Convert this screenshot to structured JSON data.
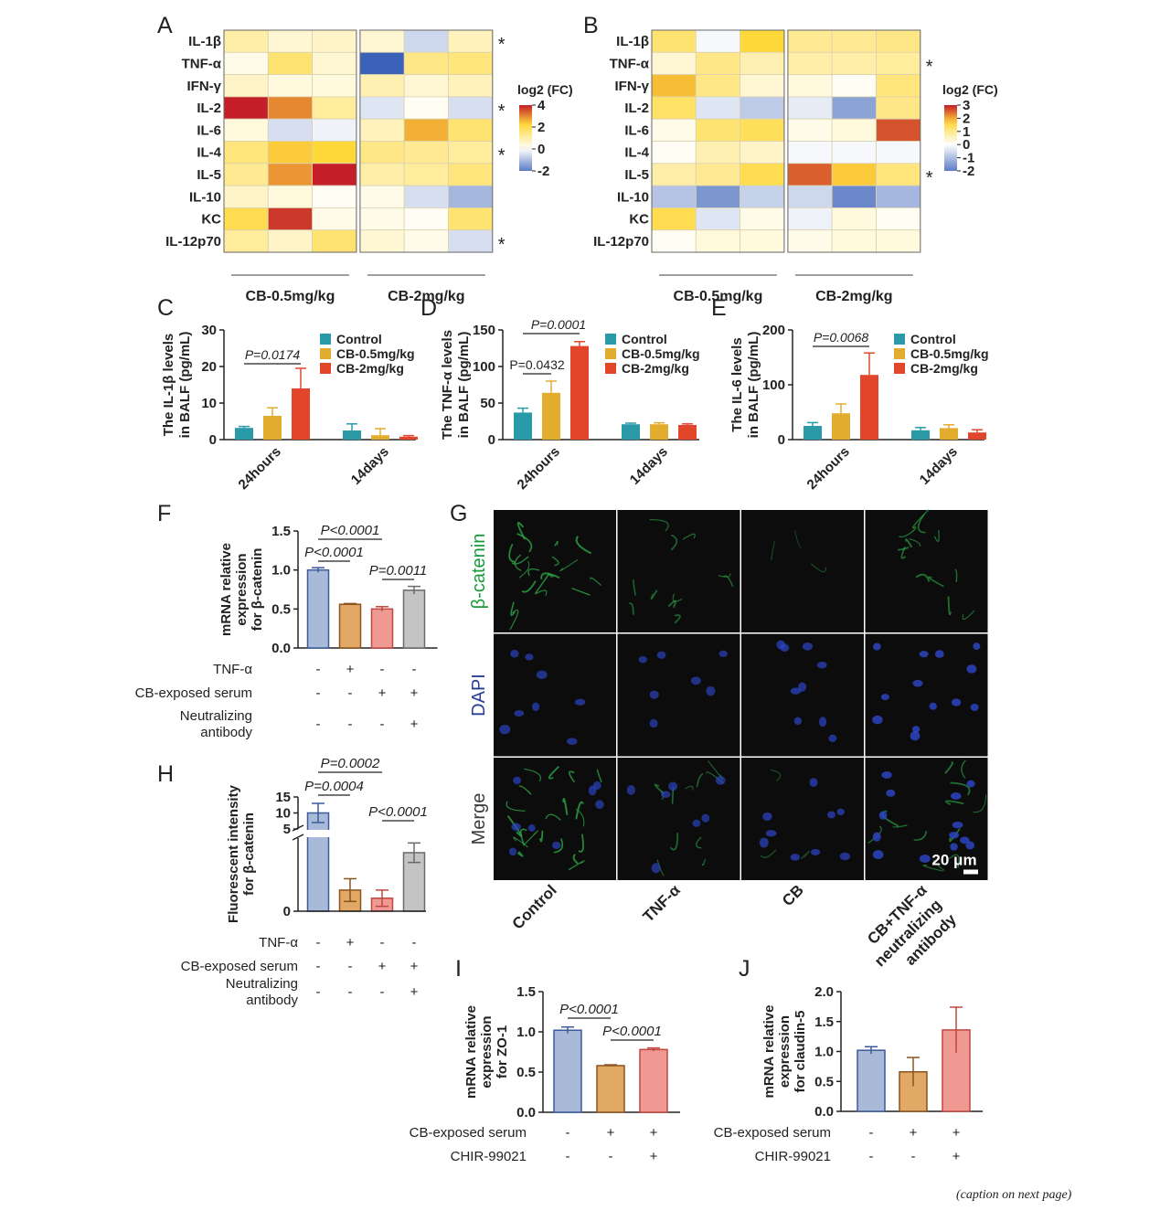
{
  "caption_note": "(caption on next page)",
  "heatmap_genes": [
    "IL-1β",
    "TNF-α",
    "IFN-γ",
    "IL-2",
    "IL-6",
    "IL-4",
    "IL-5",
    "IL-10",
    "KC",
    "IL-12p70"
  ],
  "chart_data": [
    {
      "panel": "A",
      "type": "heatmap",
      "groups": [
        "CB-0.5mg/kg",
        "CB-2mg/kg"
      ],
      "rows": [
        "IL-1β",
        "TNF-α",
        "IFN-γ",
        "IL-2",
        "IL-6",
        "IL-4",
        "IL-5",
        "IL-10",
        "KC",
        "IL-12p70"
      ],
      "values": [
        [
          0.8,
          0.4,
          0.5,
          0.4,
          -0.6,
          0.6
        ],
        [
          0.2,
          1.3,
          0.4,
          -2.4,
          1.1,
          1.2
        ],
        [
          0.5,
          0.3,
          0.3,
          0.7,
          0.4,
          0.6
        ],
        [
          3.2,
          2.4,
          0.9,
          -0.4,
          0.1,
          -0.5
        ],
        [
          0.3,
          -0.5,
          -0.2,
          0.6,
          2.1,
          1.3
        ],
        [
          1.2,
          1.9,
          1.8,
          1.1,
          1.0,
          0.9
        ],
        [
          1.0,
          2.3,
          3.4,
          0.8,
          0.9,
          1.2
        ],
        [
          0.5,
          0.3,
          0.1,
          0.2,
          -0.5,
          -1.1
        ],
        [
          1.6,
          3.0,
          0.2,
          0.2,
          0.1,
          1.3
        ],
        [
          0.9,
          0.5,
          1.3,
          0.4,
          0.2,
          -0.5
        ]
      ],
      "significant_rows": [
        "IL-1β",
        "IL-2",
        "IL-4",
        "IL-12p70"
      ],
      "legend": {
        "title": "log2 (FC)",
        "ticks": [
          "4",
          "2",
          "0",
          "-2"
        ],
        "range": [
          -2,
          4
        ]
      }
    },
    {
      "panel": "B",
      "type": "heatmap",
      "groups": [
        "CB-0.5mg/kg",
        "CB-2mg/kg"
      ],
      "rows": [
        "IL-1β",
        "TNF-α",
        "IFN-γ",
        "IL-2",
        "IL-6",
        "IL-4",
        "IL-5",
        "IL-10",
        "KC",
        "IL-12p70"
      ],
      "values": [
        [
          1.3,
          -0.1,
          1.8,
          1.0,
          1.0,
          1.1
        ],
        [
          0.4,
          1.1,
          0.7,
          0.8,
          0.8,
          0.9
        ],
        [
          2.0,
          1.1,
          0.4,
          0.3,
          0.1,
          1.2
        ],
        [
          1.4,
          -0.4,
          -0.8,
          -0.3,
          -1.4,
          1.1
        ],
        [
          0.2,
          1.3,
          1.5,
          0.2,
          0.3,
          2.8
        ],
        [
          0.1,
          0.7,
          0.5,
          -0.1,
          -0.1,
          -0.1
        ],
        [
          0.8,
          1.0,
          1.6,
          2.7,
          1.9,
          1.2
        ],
        [
          -0.9,
          -1.6,
          -0.7,
          -0.6,
          -1.8,
          -1.1
        ],
        [
          1.6,
          -0.4,
          0.2,
          -0.2,
          0.3,
          0.1
        ],
        [
          0.1,
          0.3,
          0.3,
          0.2,
          0.3,
          0.3
        ]
      ],
      "significant_rows": [
        "TNF-α",
        "IL-5"
      ],
      "legend": {
        "title": "log2 (FC)",
        "ticks": [
          "3",
          "2",
          "1",
          "0",
          "-1",
          "-2"
        ],
        "range": [
          -2,
          3
        ]
      }
    },
    {
      "panel": "C",
      "type": "bar",
      "ylabel": "The IL-1β levels in BALF (pg/mL)",
      "ylabel_lines": [
        "The IL-1β levels",
        "in BALF (pg/mL)"
      ],
      "ylim": [
        0,
        30
      ],
      "yticks": [
        "0",
        "10",
        "20",
        "30"
      ],
      "categories": [
        "24hours",
        "14days"
      ],
      "series": [
        {
          "name": "Control",
          "values": [
            3.2,
            2.5
          ],
          "errors": [
            0.4,
            1.8
          ]
        },
        {
          "name": "CB-0.5mg/kg",
          "values": [
            6.5,
            1.2
          ],
          "errors": [
            2.2,
            1.8
          ]
        },
        {
          "name": "CB-2mg/kg",
          "values": [
            14,
            0.8
          ],
          "errors": [
            5.5,
            0.3
          ]
        }
      ],
      "annotations": [
        {
          "text": "P=0.0174"
        }
      ]
    },
    {
      "panel": "D",
      "type": "bar",
      "ylabel": "The TNF-α levels in BALF (pg/mL)",
      "ylabel_lines": [
        "The TNF-α levels",
        "in BALF (pg/mL)"
      ],
      "ylim": [
        0,
        150
      ],
      "yticks": [
        "0",
        "50",
        "100",
        "150"
      ],
      "categories": [
        "24hours",
        "14days"
      ],
      "series": [
        {
          "name": "Control",
          "values": [
            37,
            21
          ],
          "errors": [
            6,
            1.5
          ]
        },
        {
          "name": "CB-0.5mg/kg",
          "values": [
            64,
            21
          ],
          "errors": [
            16,
            2
          ]
        },
        {
          "name": "CB-2mg/kg",
          "values": [
            128,
            20
          ],
          "errors": [
            6,
            1.5
          ]
        }
      ],
      "annotations": [
        {
          "text": "P=0.0432"
        },
        {
          "text": "P=0.0001"
        }
      ]
    },
    {
      "panel": "E",
      "type": "bar",
      "ylabel": "The IL-6 levels in BALF (pg/mL)",
      "ylabel_lines": [
        "The IL-6 levels",
        "in BALF (pg/mL)"
      ],
      "ylim": [
        0,
        200
      ],
      "yticks": [
        "0",
        "100",
        "200"
      ],
      "categories": [
        "24hours",
        "14days"
      ],
      "series": [
        {
          "name": "Control",
          "values": [
            25,
            17
          ],
          "errors": [
            6,
            5
          ]
        },
        {
          "name": "CB-0.5mg/kg",
          "values": [
            48,
            21
          ],
          "errors": [
            17,
            6
          ]
        },
        {
          "name": "CB-2mg/kg",
          "values": [
            118,
            13
          ],
          "errors": [
            40,
            5
          ]
        }
      ],
      "annotations": [
        {
          "text": "P=0.0068"
        }
      ]
    },
    {
      "panel": "F",
      "type": "bar",
      "ylabel": "mRNA relative expression for β-catenin",
      "ylabel_lines": [
        "mRNA relative",
        "expression",
        "for β-catenin"
      ],
      "ylim": [
        0,
        1.5
      ],
      "yticks": [
        "0.0",
        "0.5",
        "1.0",
        "1.5"
      ],
      "values": [
        1.0,
        0.56,
        0.5,
        0.74
      ],
      "errors": [
        0.03,
        0.01,
        0.03,
        0.05
      ],
      "conditions": [
        {
          "label": "TNF-α",
          "signs": [
            "-",
            "+",
            "-",
            "-"
          ]
        },
        {
          "label": "CB-exposed serum",
          "signs": [
            "-",
            "-",
            "+",
            "+"
          ]
        },
        {
          "label": "Neutralizing antibody",
          "label_lines": [
            "Neutralizing",
            "antibody"
          ],
          "signs": [
            "-",
            "-",
            "-",
            "+"
          ]
        }
      ],
      "annotations": [
        {
          "text": "P<0.0001"
        },
        {
          "text": "P<0.0001"
        },
        {
          "text": "P=0.0011"
        }
      ]
    },
    {
      "panel": "H",
      "type": "bar",
      "ylabel": "Fluorescent intensity for β-catenin",
      "ylabel_lines": [
        "Fluorescent intensity",
        "for β-catenin"
      ],
      "yticks": [
        "0",
        "5",
        "10",
        "15"
      ],
      "axis_break": true,
      "values": [
        10,
        1.3,
        0.8,
        3.6
      ],
      "errors": [
        3,
        0.7,
        0.5,
        0.6
      ],
      "conditions": [
        {
          "label": "TNF-α",
          "signs": [
            "-",
            "+",
            "-",
            "-"
          ]
        },
        {
          "label": "CB-exposed serum",
          "signs": [
            "-",
            "-",
            "+",
            "+"
          ]
        },
        {
          "label": "Neutralizing antibody",
          "label_lines": [
            "Neutralizing",
            "antibody"
          ],
          "signs": [
            "-",
            "-",
            "-",
            "+"
          ]
        }
      ],
      "annotations": [
        {
          "text": "P=0.0004"
        },
        {
          "text": "P=0.0002"
        },
        {
          "text": "P<0.0001"
        }
      ]
    },
    {
      "panel": "I",
      "type": "bar",
      "ylabel": "mRNA relative expression for ZO-1",
      "ylabel_lines": [
        "mRNA relative",
        "expression",
        "for ZO-1"
      ],
      "ylim": [
        0,
        1.5
      ],
      "yticks": [
        "0.0",
        "0.5",
        "1.0",
        "1.5"
      ],
      "values": [
        1.02,
        0.58,
        0.78
      ],
      "errors": [
        0.04,
        0.01,
        0.02
      ],
      "conditions": [
        {
          "label": "CB-exposed serum",
          "signs": [
            "-",
            "+",
            "+"
          ]
        },
        {
          "label": "CHIR-99021",
          "signs": [
            "-",
            "-",
            "+"
          ]
        }
      ],
      "annotations": [
        {
          "text": "P<0.0001"
        },
        {
          "text": "P<0.0001"
        }
      ]
    },
    {
      "panel": "J",
      "type": "bar",
      "ylabel": "mRNA relative expression for claudin-5",
      "ylabel_lines": [
        "mRNA relative",
        "expression",
        "for claudin-5"
      ],
      "ylim": [
        0,
        2.0
      ],
      "yticks": [
        "0.0",
        "0.5",
        "1.0",
        "1.5",
        "2.0"
      ],
      "values": [
        1.02,
        0.66,
        1.36
      ],
      "errors": [
        0.06,
        0.24,
        0.38
      ],
      "conditions": [
        {
          "label": "CB-exposed serum",
          "signs": [
            "-",
            "+",
            "+"
          ]
        },
        {
          "label": "CHIR-99021",
          "signs": [
            "-",
            "-",
            "+"
          ]
        }
      ]
    },
    {
      "panel": "G",
      "type": "image-grid",
      "row_labels": [
        "β-catenin",
        "DAPI",
        "Merge"
      ],
      "column_labels": [
        "Control",
        "TNF-α",
        "CB",
        "CB+TNF-α neutralizing antibody"
      ],
      "column_label_lines": [
        [
          "Control"
        ],
        [
          "TNF-α"
        ],
        [
          "CB"
        ],
        [
          "CB+TNF-α",
          "neutralizing",
          "antibody"
        ]
      ],
      "scale_bar": "20 μm",
      "intensity": {
        "beta_catenin": [
          0.9,
          0.5,
          0.15,
          0.6
        ],
        "dapi": [
          0.5,
          0.45,
          0.55,
          0.8
        ]
      }
    }
  ],
  "colors": {
    "control": "#2a9aa8",
    "cb05": "#e2ad2f",
    "cb2": "#e2462a",
    "bar_blue": "#a9b9d8",
    "bar_blue_edge": "#3a5a9a",
    "bar_orange": "#e2a866",
    "bar_orange_edge": "#8a5420",
    "bar_pink": "#ee9a92",
    "bar_pink_edge": "#c0463f",
    "bar_grey": "#c4c4c4",
    "bar_grey_edge": "#6a6a6a",
    "heat_neg": "#3a62b8",
    "heat_zero": "#ffffff",
    "heat_mid": "#ffd83a",
    "heat_pos": "#c41e28",
    "green": "#1a9b3a",
    "navy": "#2a3e92"
  }
}
